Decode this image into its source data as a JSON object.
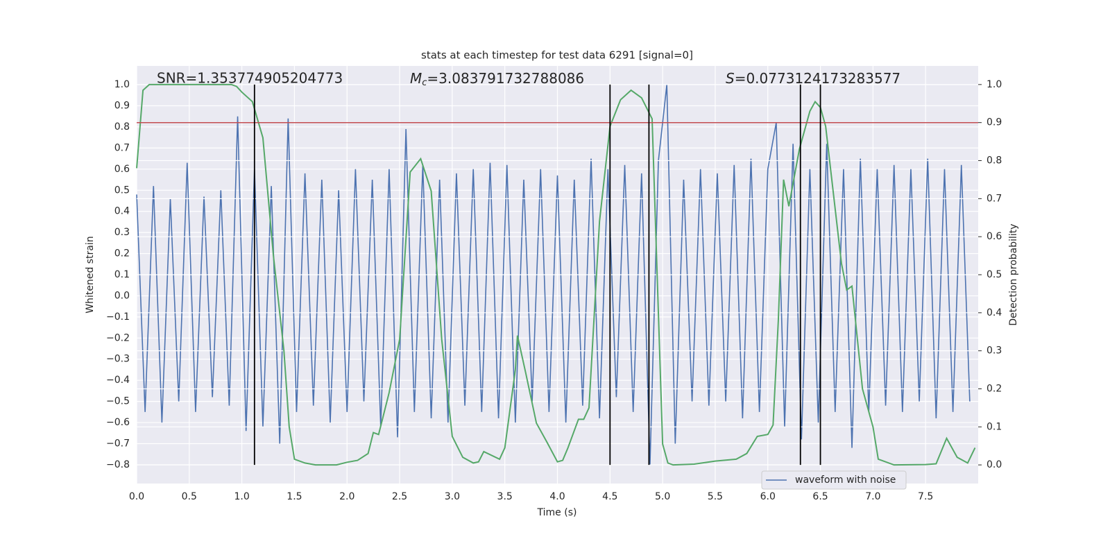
{
  "chart_data": {
    "type": "line",
    "title": "stats at each timestep for test data 6291 [signal=0]",
    "xlabel": "Time (s)",
    "ylabel": "Whitened strain",
    "y2label": "Detection probability",
    "xlim": [
      0,
      8
    ],
    "ylim": [
      -0.889,
      1.089
    ],
    "y2lim": [
      -0.049,
      1.049
    ],
    "grid": true,
    "legend": "lower right",
    "xticks": [
      {
        "value": 0,
        "label": "0.0"
      },
      {
        "value": 0.5,
        "label": "0.5"
      },
      {
        "value": 1,
        "label": "1.0"
      },
      {
        "value": 1.5,
        "label": "1.5"
      },
      {
        "value": 2,
        "label": "2.0"
      },
      {
        "value": 2.5,
        "label": "2.5"
      },
      {
        "value": 3,
        "label": "3.0"
      },
      {
        "value": 3.5,
        "label": "3.5"
      },
      {
        "value": 4,
        "label": "4.0"
      },
      {
        "value": 4.5,
        "label": "4.5"
      },
      {
        "value": 5,
        "label": "5.0"
      },
      {
        "value": 5.5,
        "label": "5.5"
      },
      {
        "value": 6,
        "label": "6.0"
      },
      {
        "value": 6.5,
        "label": "6.5"
      },
      {
        "value": 7,
        "label": "7.0"
      },
      {
        "value": 7.5,
        "label": "7.5"
      }
    ],
    "yticks": [
      {
        "value": -0.8,
        "label": "−0.8"
      },
      {
        "value": -0.7,
        "label": "−0.7"
      },
      {
        "value": -0.6,
        "label": "−0.6"
      },
      {
        "value": -0.5,
        "label": "−0.5"
      },
      {
        "value": -0.4,
        "label": "−0.4"
      },
      {
        "value": -0.3,
        "label": "−0.3"
      },
      {
        "value": -0.2,
        "label": "−0.2"
      },
      {
        "value": -0.1,
        "label": "−0.1"
      },
      {
        "value": 0,
        "label": "0.0"
      },
      {
        "value": 0.1,
        "label": "0.1"
      },
      {
        "value": 0.2,
        "label": "0.2"
      },
      {
        "value": 0.3,
        "label": "0.3"
      },
      {
        "value": 0.4,
        "label": "0.4"
      },
      {
        "value": 0.5,
        "label": "0.5"
      },
      {
        "value": 0.6,
        "label": "0.6"
      },
      {
        "value": 0.7,
        "label": "0.7"
      },
      {
        "value": 0.8,
        "label": "0.8"
      },
      {
        "value": 0.9,
        "label": "0.9"
      },
      {
        "value": 1,
        "label": "1.0"
      }
    ],
    "y2ticks": [
      {
        "value": 0,
        "label": "0.0"
      },
      {
        "value": 0.1,
        "label": "0.1"
      },
      {
        "value": 0.2,
        "label": "0.2"
      },
      {
        "value": 0.3,
        "label": "0.3"
      },
      {
        "value": 0.4,
        "label": "0.4"
      },
      {
        "value": 0.5,
        "label": "0.5"
      },
      {
        "value": 0.6,
        "label": "0.6"
      },
      {
        "value": 0.7,
        "label": "0.7"
      },
      {
        "value": 0.8,
        "label": "0.8"
      },
      {
        "value": 0.9,
        "label": "0.9"
      },
      {
        "value": 1,
        "label": "1.0"
      }
    ],
    "series": [
      {
        "name": "waveform with noise",
        "color": "#4c72b0",
        "x": [
          0,
          0.08,
          0.16,
          0.24,
          0.32,
          0.4,
          0.48,
          0.56,
          0.64,
          0.72,
          0.8,
          0.88,
          0.96,
          1.04,
          1.12,
          1.2,
          1.28,
          1.36,
          1.44,
          1.52,
          1.6,
          1.68,
          1.76,
          1.84,
          1.92,
          2,
          2.08,
          2.16,
          2.24,
          2.32,
          2.4,
          2.48,
          2.56,
          2.64,
          2.72,
          2.8,
          2.88,
          2.96,
          3.04,
          3.12,
          3.2,
          3.28,
          3.36,
          3.44,
          3.52,
          3.6,
          3.68,
          3.76,
          3.84,
          3.92,
          4,
          4.08,
          4.16,
          4.24,
          4.32,
          4.4,
          4.48,
          4.56,
          4.64,
          4.72,
          4.8,
          4.88,
          4.96,
          5.04,
          5.12,
          5.2,
          5.28,
          5.36,
          5.44,
          5.52,
          5.6,
          5.68,
          5.76,
          5.84,
          5.92,
          6,
          6.08,
          6.16,
          6.24,
          6.32,
          6.4,
          6.48,
          6.56,
          6.64,
          6.72,
          6.8,
          6.88,
          6.96,
          7.04,
          7.12,
          7.2,
          7.28,
          7.36,
          7.44,
          7.52,
          7.6,
          7.68,
          7.76,
          7.84,
          7.92
        ],
        "values": [
          0.48,
          -0.55,
          0.52,
          -0.6,
          0.46,
          -0.5,
          0.63,
          -0.55,
          0.47,
          -0.48,
          0.5,
          -0.52,
          0.85,
          -0.64,
          0.6,
          -0.62,
          0.52,
          -0.7,
          0.84,
          -0.55,
          0.58,
          -0.52,
          0.55,
          -0.6,
          0.5,
          -0.55,
          0.6,
          -0.5,
          0.55,
          -0.62,
          0.6,
          -0.67,
          0.79,
          -0.55,
          0.62,
          -0.58,
          0.55,
          -0.6,
          0.58,
          -0.52,
          0.6,
          -0.55,
          0.63,
          -0.58,
          0.62,
          -0.6,
          0.55,
          -0.5,
          0.6,
          -0.55,
          0.57,
          -0.6,
          0.55,
          -0.52,
          0.65,
          -0.58,
          0.6,
          -0.48,
          0.62,
          -0.55,
          0.58,
          -0.8,
          0.64,
          1.0,
          -0.7,
          0.55,
          -0.5,
          0.6,
          -0.52,
          0.58,
          -0.5,
          0.62,
          -0.58,
          0.65,
          -0.55,
          0.6,
          0.82,
          -0.62,
          0.72,
          -0.68,
          0.6,
          -0.6,
          0.72,
          -0.55,
          0.6,
          -0.72,
          0.65,
          -0.55,
          0.6,
          -0.52,
          0.62,
          -0.55,
          0.6,
          -0.5,
          0.65,
          -0.58,
          0.6,
          -0.55,
          0.62,
          -0.5
        ]
      },
      {
        "color": "#55a868",
        "axis": "y2",
        "x": [
          0,
          0.06,
          0.12,
          0.2,
          0.9,
          0.95,
          1,
          1.1,
          1.2,
          1.3,
          1.4,
          1.45,
          1.5,
          1.6,
          1.7,
          1.9,
          2,
          2.1,
          2.2,
          2.25,
          2.3,
          2.4,
          2.5,
          2.6,
          2.7,
          2.8,
          2.9,
          3,
          3.1,
          3.2,
          3.25,
          3.3,
          3.45,
          3.5,
          3.6,
          3.62,
          3.7,
          3.8,
          3.9,
          4,
          4.05,
          4.1,
          4.2,
          4.25,
          4.3,
          4.4,
          4.5,
          4.6,
          4.7,
          4.8,
          4.9,
          5,
          5.05,
          5.1,
          5.3,
          5.5,
          5.7,
          5.8,
          5.9,
          6,
          6.05,
          6.1,
          6.15,
          6.2,
          6.3,
          6.4,
          6.45,
          6.5,
          6.55,
          6.7,
          6.75,
          6.8,
          6.9,
          7,
          7.05,
          7.2,
          7.5,
          7.6,
          7.7,
          7.8,
          7.9,
          7.97
        ],
        "values": [
          0.78,
          0.985,
          1,
          1,
          1,
          0.995,
          0.98,
          0.955,
          0.86,
          0.55,
          0.3,
          0.1,
          0.015,
          0.005,
          0,
          0,
          0.007,
          0.012,
          0.03,
          0.085,
          0.08,
          0.19,
          0.33,
          0.77,
          0.805,
          0.72,
          0.33,
          0.075,
          0.02,
          0.005,
          0.008,
          0.035,
          0.015,
          0.045,
          0.25,
          0.34,
          0.24,
          0.11,
          0.06,
          0.008,
          0.012,
          0.045,
          0.12,
          0.12,
          0.15,
          0.64,
          0.89,
          0.96,
          0.985,
          0.965,
          0.91,
          0.055,
          0.005,
          0,
          0.002,
          0.01,
          0.015,
          0.03,
          0.075,
          0.08,
          0.105,
          0.38,
          0.75,
          0.68,
          0.83,
          0.93,
          0.955,
          0.94,
          0.89,
          0.53,
          0.46,
          0.47,
          0.2,
          0.1,
          0.015,
          0,
          0.001,
          0.003,
          0.07,
          0.02,
          0.005,
          0.045
        ]
      }
    ],
    "hline": {
      "y": 0.9,
      "axis": "y2",
      "color": "#c44e52"
    },
    "vlines": {
      "x": [
        1.12,
        4.5,
        4.87,
        6.31,
        6.5
      ],
      "range": [
        0,
        1
      ],
      "axis": "y2",
      "color": "#000000"
    },
    "annotations": [
      {
        "text": "SNR=1.353774905204773"
      },
      {
        "symbol": "M",
        "subscript": "c",
        "text": "=3.083791732788086"
      },
      {
        "symbol": "S",
        "text": "=0.0773124173283577"
      }
    ]
  }
}
